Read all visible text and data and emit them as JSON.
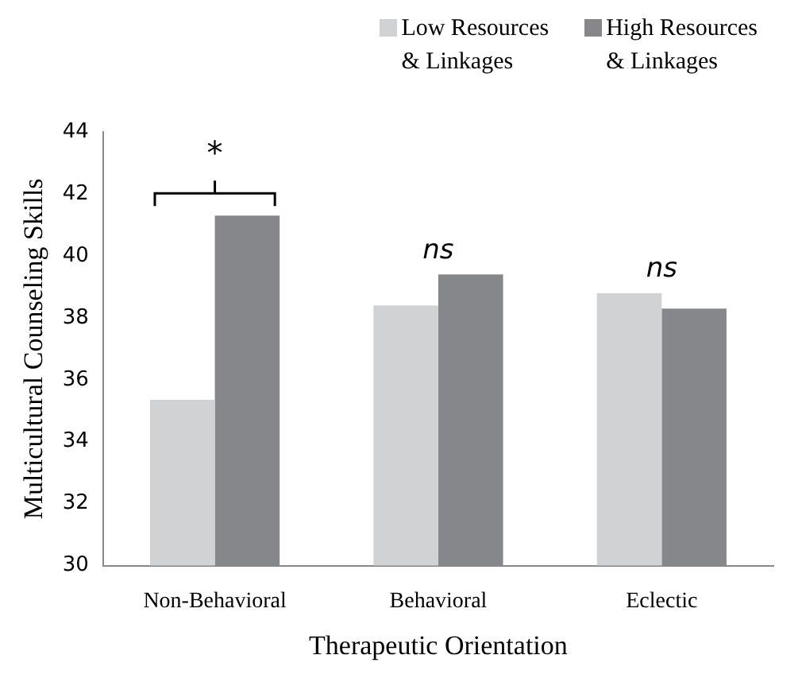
{
  "chart_data": {
    "type": "bar",
    "xlabel": "Therapeutic Orientation",
    "ylabel": "Multicultural Counseling Skills",
    "categories": [
      "Non-Behavioral",
      "Behavioral",
      "Eclectic"
    ],
    "series": [
      {
        "name": "Low Resources\n& Linkages",
        "color": "#d1d2d4",
        "values": [
          35.35,
          38.4,
          38.8
        ]
      },
      {
        "name": "High Resources\n& Linkages",
        "color": "#86878b",
        "values": [
          41.3,
          39.4,
          38.3
        ]
      }
    ],
    "ylim": [
      30,
      44
    ],
    "yticks": [
      30,
      32,
      34,
      36,
      38,
      40,
      42,
      44
    ],
    "grid": false,
    "legend": "top right",
    "annotations": [
      "*",
      "ns",
      "ns"
    ]
  }
}
